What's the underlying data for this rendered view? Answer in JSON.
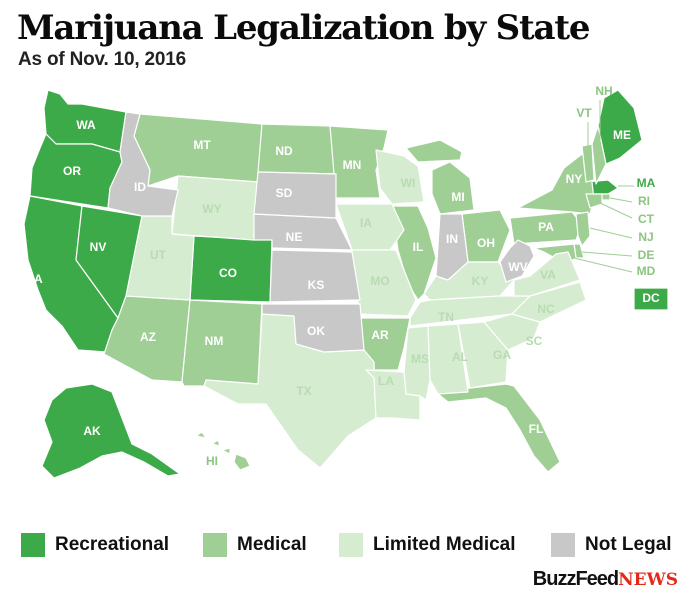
{
  "title": "Marijuana Legalization by State",
  "subtitle": "As of Nov. 10, 2016",
  "colors": {
    "recreational": "#3daa49",
    "medical": "#9fcf95",
    "limited": "#d5ecd0",
    "notlegal": "#c8c8c8",
    "border": "#ffffff"
  },
  "legend": [
    {
      "key": "recreational",
      "label": "Recreational"
    },
    {
      "key": "medical",
      "label": "Medical"
    },
    {
      "key": "limited",
      "label": "Limited Medical"
    },
    {
      "key": "notlegal",
      "label": "Not Legal"
    }
  ],
  "states": [
    {
      "abbr": "WA",
      "status": "recreational"
    },
    {
      "abbr": "OR",
      "status": "recreational"
    },
    {
      "abbr": "CA",
      "status": "recreational"
    },
    {
      "abbr": "NV",
      "status": "recreational"
    },
    {
      "abbr": "CO",
      "status": "recreational"
    },
    {
      "abbr": "AK",
      "status": "recreational"
    },
    {
      "abbr": "ME",
      "status": "recreational"
    },
    {
      "abbr": "MA",
      "status": "recreational"
    },
    {
      "abbr": "DC",
      "status": "recreational"
    },
    {
      "abbr": "MT",
      "status": "medical"
    },
    {
      "abbr": "ND",
      "status": "medical"
    },
    {
      "abbr": "MN",
      "status": "medical"
    },
    {
      "abbr": "AZ",
      "status": "medical"
    },
    {
      "abbr": "NM",
      "status": "medical"
    },
    {
      "abbr": "AR",
      "status": "medical"
    },
    {
      "abbr": "IL",
      "status": "medical"
    },
    {
      "abbr": "MI",
      "status": "medical"
    },
    {
      "abbr": "OH",
      "status": "medical"
    },
    {
      "abbr": "PA",
      "status": "medical"
    },
    {
      "abbr": "NY",
      "status": "medical"
    },
    {
      "abbr": "VT",
      "status": "medical"
    },
    {
      "abbr": "NH",
      "status": "medical"
    },
    {
      "abbr": "RI",
      "status": "medical"
    },
    {
      "abbr": "CT",
      "status": "medical"
    },
    {
      "abbr": "NJ",
      "status": "medical"
    },
    {
      "abbr": "DE",
      "status": "medical"
    },
    {
      "abbr": "MD",
      "status": "medical"
    },
    {
      "abbr": "FL",
      "status": "medical"
    },
    {
      "abbr": "HI",
      "status": "medical"
    },
    {
      "abbr": "UT",
      "status": "limited"
    },
    {
      "abbr": "WY",
      "status": "limited"
    },
    {
      "abbr": "TX",
      "status": "limited"
    },
    {
      "abbr": "IA",
      "status": "limited"
    },
    {
      "abbr": "WI",
      "status": "limited"
    },
    {
      "abbr": "KY",
      "status": "limited"
    },
    {
      "abbr": "TN",
      "status": "limited"
    },
    {
      "abbr": "MS",
      "status": "limited"
    },
    {
      "abbr": "AL",
      "status": "limited"
    },
    {
      "abbr": "GA",
      "status": "limited"
    },
    {
      "abbr": "SC",
      "status": "limited"
    },
    {
      "abbr": "NC",
      "status": "limited"
    },
    {
      "abbr": "VA",
      "status": "limited"
    },
    {
      "abbr": "LA",
      "status": "limited"
    },
    {
      "abbr": "MO",
      "status": "limited"
    },
    {
      "abbr": "OK",
      "status": "notlegal"
    },
    {
      "abbr": "KS",
      "status": "notlegal"
    },
    {
      "abbr": "NE",
      "status": "notlegal"
    },
    {
      "abbr": "SD",
      "status": "notlegal"
    },
    {
      "abbr": "ID",
      "status": "notlegal"
    },
    {
      "abbr": "IN",
      "status": "notlegal"
    },
    {
      "abbr": "WV",
      "status": "notlegal"
    }
  ],
  "brand": {
    "part1": "BuzzFeed",
    "part2": "NEWS"
  }
}
